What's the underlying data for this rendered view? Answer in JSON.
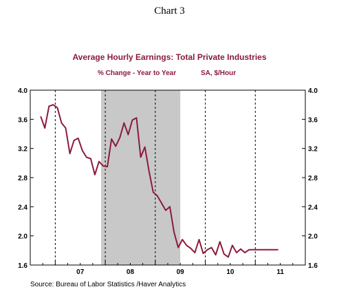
{
  "header": {
    "chart_number": "Chart 3"
  },
  "chart_data": {
    "type": "line",
    "title": "Average Hourly Earnings: Total Private Industries",
    "subtitle_left": "% Change - Year to Year",
    "subtitle_right": "SA, $/Hour",
    "source": "Source:  Bureau of Labor Statistics /Haver Analytics",
    "xlabel": "",
    "ylabel": "",
    "ylim": [
      1.6,
      4.0
    ],
    "yticks": [
      "1.6",
      "2.0",
      "2.4",
      "2.8",
      "3.2",
      "3.6",
      "4.0"
    ],
    "x_tick_labels": [
      "07",
      "08",
      "09",
      "10",
      "11"
    ],
    "x_range_months": [
      "2006-07",
      "2011-12"
    ],
    "recession_shading": {
      "start": "2007-12",
      "end": "2009-06",
      "color": "#c8c8c8"
    },
    "grid": "vertical dashed at year boundaries",
    "line_color": "#8b1a3a",
    "series": [
      {
        "x": [
          "2006-09",
          "2006-10",
          "2006-11",
          "2006-12",
          "2007-01",
          "2007-02",
          "2007-03",
          "2007-04",
          "2007-05",
          "2007-06",
          "2007-07",
          "2007-08",
          "2007-09",
          "2007-10",
          "2007-11",
          "2007-12",
          "2008-01",
          "2008-02",
          "2008-03",
          "2008-04",
          "2008-05",
          "2008-06",
          "2008-07",
          "2008-08",
          "2008-09",
          "2008-10",
          "2008-11",
          "2008-12",
          "2009-01",
          "2009-02",
          "2009-03",
          "2009-04",
          "2009-05",
          "2009-06",
          "2009-07",
          "2009-08",
          "2009-09",
          "2009-10",
          "2009-11",
          "2009-12",
          "2010-01",
          "2010-02",
          "2010-03",
          "2010-04",
          "2010-05",
          "2010-06",
          "2010-07",
          "2010-08",
          "2010-09",
          "2010-10",
          "2010-11",
          "2010-12",
          "2011-01",
          "2011-02",
          "2011-03",
          "2011-04",
          "2011-05",
          "2011-06"
        ],
        "values": [
          3.64,
          3.48,
          3.78,
          3.8,
          3.76,
          3.55,
          3.48,
          3.13,
          3.31,
          3.34,
          3.17,
          3.08,
          3.06,
          2.84,
          3.02,
          2.96,
          2.95,
          3.33,
          3.23,
          3.35,
          3.55,
          3.39,
          3.59,
          3.62,
          3.08,
          3.22,
          2.89,
          2.6,
          2.55,
          2.45,
          2.35,
          2.4,
          2.05,
          1.84,
          1.95,
          1.87,
          1.83,
          1.77,
          1.95,
          1.76,
          1.81,
          1.84,
          1.74,
          1.92,
          1.75,
          1.71,
          1.87,
          1.77,
          1.82,
          1.77,
          1.81,
          1.81,
          1.81,
          1.81,
          1.81,
          1.81,
          1.81,
          1.81
        ]
      }
    ]
  }
}
